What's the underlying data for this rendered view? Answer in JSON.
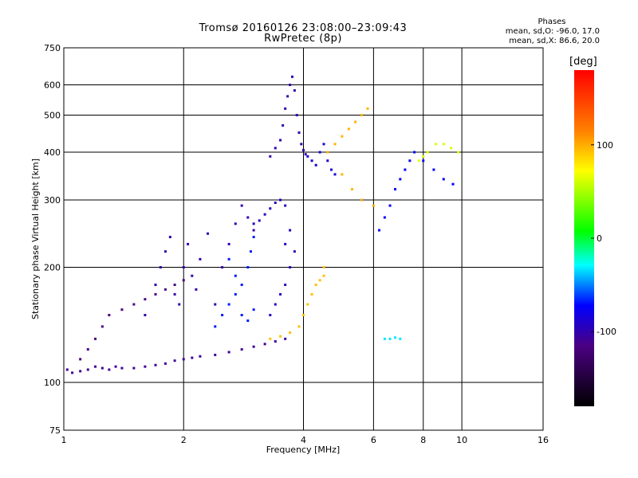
{
  "title_line1": "Tromsø 20160126 23:08:00–23:09:43",
  "title_line2": "RwPretec (8p)",
  "phases": {
    "title": "Phases",
    "line_o": "mean, sd,O: -96.0, 17.0",
    "line_x": "mean, sd,X:  86.6, 20.0"
  },
  "colorbar": {
    "unit_label": "[deg]",
    "ticks": [
      "100",
      "0",
      "-100"
    ],
    "range": [
      -180,
      180
    ]
  },
  "chart_data": {
    "type": "scatter",
    "xlabel": "Frequency [MHz]",
    "ylabel": "Stationary phase Virtual Height [km]",
    "xscale": "log",
    "yscale": "log",
    "xlim": [
      1,
      16
    ],
    "ylim": [
      75,
      750
    ],
    "xticks": [
      1,
      2,
      4,
      6,
      8,
      10,
      16
    ],
    "xtick_labels": [
      "1",
      "2",
      "4",
      "6",
      "8",
      "10",
      "16"
    ],
    "yticks": [
      75,
      100,
      200,
      300,
      400,
      500,
      600,
      750
    ],
    "ytick_labels": [
      "75",
      "100",
      "200",
      "300",
      "400",
      "500",
      "600",
      "750"
    ],
    "grid": true,
    "color_by": "phase (deg)",
    "clusters": [
      {
        "phase": -115,
        "points": [
          [
            1.02,
            108
          ],
          [
            1.05,
            106
          ],
          [
            1.1,
            107
          ],
          [
            1.15,
            108
          ],
          [
            1.2,
            110
          ],
          [
            1.25,
            109
          ],
          [
            1.3,
            108
          ],
          [
            1.35,
            110
          ],
          [
            1.4,
            109
          ],
          [
            1.5,
            109
          ],
          [
            1.6,
            110
          ],
          [
            1.7,
            111
          ],
          [
            1.8,
            112
          ],
          [
            1.9,
            114
          ],
          [
            2.0,
            115
          ],
          [
            2.1,
            116
          ],
          [
            2.2,
            117
          ],
          [
            2.4,
            118
          ],
          [
            2.6,
            120
          ],
          [
            2.8,
            122
          ],
          [
            3.0,
            124
          ],
          [
            3.2,
            126
          ],
          [
            3.4,
            128
          ],
          [
            3.6,
            130
          ]
        ]
      },
      {
        "phase": -120,
        "points": [
          [
            1.1,
            115
          ],
          [
            1.15,
            122
          ],
          [
            1.2,
            130
          ],
          [
            1.25,
            140
          ],
          [
            1.3,
            150
          ],
          [
            1.4,
            155
          ],
          [
            1.5,
            160
          ],
          [
            1.6,
            165
          ],
          [
            1.7,
            170
          ],
          [
            1.8,
            175
          ],
          [
            1.9,
            180
          ],
          [
            2.0,
            185
          ]
        ]
      },
      {
        "phase": -110,
        "points": [
          [
            1.6,
            150
          ],
          [
            1.7,
            180
          ],
          [
            1.75,
            200
          ],
          [
            1.8,
            220
          ],
          [
            1.85,
            240
          ],
          [
            1.9,
            170
          ],
          [
            1.95,
            160
          ],
          [
            2.0,
            200
          ],
          [
            2.05,
            230
          ],
          [
            2.1,
            190
          ],
          [
            2.15,
            175
          ],
          [
            2.2,
            210
          ],
          [
            2.3,
            245
          ],
          [
            2.4,
            160
          ],
          [
            2.5,
            200
          ],
          [
            2.6,
            230
          ],
          [
            2.7,
            260
          ],
          [
            2.8,
            290
          ],
          [
            2.9,
            270
          ],
          [
            3.0,
            250
          ]
        ]
      },
      {
        "phase": -85,
        "points": [
          [
            2.4,
            140
          ],
          [
            2.5,
            150
          ],
          [
            2.6,
            160
          ],
          [
            2.7,
            170
          ],
          [
            2.8,
            180
          ],
          [
            2.9,
            200
          ],
          [
            2.95,
            220
          ],
          [
            3.0,
            240
          ],
          [
            2.6,
            210
          ],
          [
            2.7,
            190
          ],
          [
            2.8,
            150
          ],
          [
            2.9,
            145
          ],
          [
            3.0,
            155
          ]
        ]
      },
      {
        "phase": -105,
        "points": [
          [
            3.0,
            260
          ],
          [
            3.1,
            265
          ],
          [
            3.2,
            275
          ],
          [
            3.3,
            285
          ],
          [
            3.4,
            295
          ],
          [
            3.5,
            300
          ],
          [
            3.6,
            290
          ],
          [
            3.3,
            150
          ],
          [
            3.4,
            160
          ],
          [
            3.5,
            170
          ],
          [
            3.6,
            180
          ],
          [
            3.7,
            200
          ],
          [
            3.8,
            220
          ],
          [
            3.7,
            250
          ],
          [
            3.6,
            230
          ]
        ]
      },
      {
        "phase": -110,
        "points": [
          [
            3.3,
            390
          ],
          [
            3.4,
            410
          ],
          [
            3.5,
            430
          ],
          [
            3.55,
            470
          ],
          [
            3.6,
            520
          ],
          [
            3.65,
            560
          ],
          [
            3.7,
            600
          ],
          [
            3.75,
            630
          ],
          [
            3.8,
            580
          ],
          [
            3.85,
            500
          ],
          [
            3.9,
            450
          ],
          [
            3.95,
            420
          ],
          [
            4.0,
            405
          ],
          [
            4.05,
            395
          ]
        ]
      },
      {
        "phase": -100,
        "points": [
          [
            4.1,
            390
          ],
          [
            4.2,
            380
          ],
          [
            4.3,
            370
          ],
          [
            4.4,
            400
          ],
          [
            4.5,
            420
          ],
          [
            4.6,
            380
          ],
          [
            4.7,
            360
          ],
          [
            4.8,
            350
          ]
        ]
      },
      {
        "phase": 95,
        "points": [
          [
            3.3,
            130
          ],
          [
            3.5,
            132
          ],
          [
            3.7,
            135
          ],
          [
            3.9,
            140
          ],
          [
            4.0,
            150
          ],
          [
            4.1,
            160
          ],
          [
            4.2,
            170
          ],
          [
            4.3,
            180
          ],
          [
            4.4,
            185
          ],
          [
            4.5,
            190
          ],
          [
            4.5,
            200
          ]
        ]
      },
      {
        "phase": 100,
        "points": [
          [
            4.6,
            400
          ],
          [
            4.8,
            420
          ],
          [
            5.0,
            440
          ],
          [
            5.2,
            460
          ],
          [
            5.4,
            480
          ],
          [
            5.6,
            500
          ],
          [
            5.8,
            520
          ],
          [
            5.0,
            350
          ],
          [
            5.3,
            320
          ],
          [
            5.6,
            300
          ],
          [
            6.0,
            290
          ]
        ]
      },
      {
        "phase": -90,
        "points": [
          [
            6.2,
            250
          ],
          [
            6.4,
            270
          ],
          [
            6.6,
            290
          ],
          [
            6.8,
            320
          ],
          [
            7.0,
            340
          ],
          [
            7.2,
            360
          ],
          [
            7.4,
            380
          ],
          [
            7.6,
            400
          ],
          [
            8.0,
            380
          ],
          [
            8.5,
            360
          ],
          [
            9.0,
            340
          ],
          [
            9.5,
            330
          ]
        ]
      },
      {
        "phase": 60,
        "points": [
          [
            7.8,
            380
          ],
          [
            8.0,
            390
          ],
          [
            8.2,
            400
          ],
          [
            8.6,
            420
          ],
          [
            9.0,
            420
          ],
          [
            9.4,
            410
          ],
          [
            9.8,
            400
          ]
        ]
      },
      {
        "phase": -45,
        "points": [
          [
            6.4,
            130
          ],
          [
            6.6,
            130
          ],
          [
            6.8,
            131
          ],
          [
            7.0,
            130
          ]
        ]
      }
    ]
  }
}
